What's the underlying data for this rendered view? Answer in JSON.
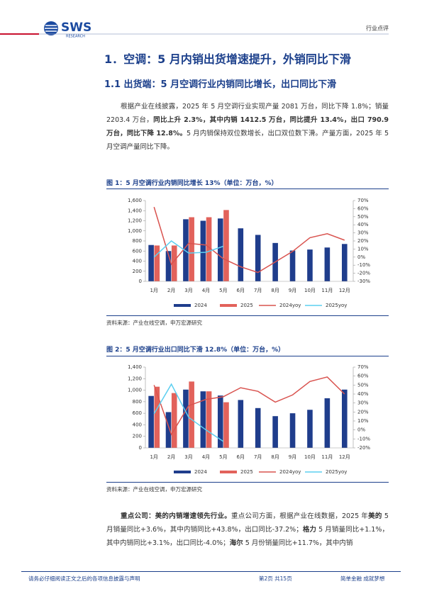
{
  "header": {
    "logo": "SWS",
    "logo_sub": "RESEARCH",
    "label": "行业点评"
  },
  "heading": "1．空调：5 月内销出货增速提升，外销同比下滑",
  "subheading": "1.1 出货端：5 月空调行业内销同比增长，出口同比下滑",
  "paragraphs": [
    [
      {
        "text": "根据产业在线披露，2025 年 5 月空调行业实现产量 2081 万台，同比下降 1.8%；销量 2203.4 万台，",
        "bold": false
      },
      {
        "text": "同比上升 2.3%，其中内销 1412.5 万台，同比提升 13.4%，出口 790.9 万台，同比下降 12.8%。",
        "bold": true
      },
      {
        "text": "5 月内销保持双位数增长，出口双位数下滑。产量方面，2025 年 5 月空调产量同比下降。",
        "bold": false
      }
    ],
    [
      {
        "text": "重点公司：美的内销增速领先行业。",
        "bold": true
      },
      {
        "text": "重点公司方面，根据产业在线数据，2025 年",
        "bold": false
      },
      {
        "text": "美的",
        "bold": true
      },
      {
        "text": " 5 月销量同比+3.6%，其中内销同比+43.8%，出口同比-37.2%；",
        "bold": false
      },
      {
        "text": "格力",
        "bold": true
      },
      {
        "text": " 5 月销量同比+1.1%，其中内销同比+3.1%，出口同比-4.0%；",
        "bold": false
      },
      {
        "text": "海尔",
        "bold": true
      },
      {
        "text": " 5 月份销量同比+11.7%，其中内销",
        "bold": false
      }
    ]
  ],
  "chart_data": [
    {
      "type": "bar",
      "title": "图 1：5 月空调行业内销同比增长 13%（单位：万台，%）",
      "source": "资料来源：产业在线空调，申万宏源研究",
      "categories": [
        "1月",
        "2月",
        "3月",
        "4月",
        "5月",
        "6月",
        "7月",
        "8月",
        "9月",
        "10月",
        "11月",
        "12月"
      ],
      "series": [
        {
          "name": "2024",
          "type": "bar",
          "color": "#1f3d8c",
          "values": [
            720,
            600,
            1230,
            1200,
            1245,
            1050,
            920,
            760,
            610,
            630,
            670,
            740
          ]
        },
        {
          "name": "2025",
          "type": "bar",
          "color": "#e2625b",
          "values": [
            710,
            710,
            1270,
            1270,
            1412.5,
            null,
            null,
            null,
            null,
            null,
            null,
            null
          ]
        },
        {
          "name": "2024yoy",
          "type": "line",
          "axis": "y2",
          "color": "#d9534f",
          "values": [
            62,
            -9,
            17,
            15,
            -2,
            -12,
            -19,
            -6,
            7,
            24,
            29,
            21
          ]
        },
        {
          "name": "2025yoy",
          "type": "line",
          "axis": "y2",
          "color": "#5ccff0",
          "values": [
            0,
            20,
            5,
            6,
            13.4,
            null,
            null,
            null,
            null,
            null,
            null,
            null
          ]
        }
      ],
      "ylim": [
        0,
        1600
      ],
      "yticks": [
        0,
        200,
        400,
        600,
        800,
        {
          "value": 1000,
          "label": "1,000"
        },
        {
          "value": 1200,
          "label": "1,200"
        },
        {
          "value": 1400,
          "label": "1,400"
        },
        {
          "value": 1600,
          "label": "1,600"
        }
      ],
      "y2lim": [
        -30,
        70
      ],
      "y2ticks": [
        {
          "value": -30,
          "label": "-30%"
        },
        {
          "value": -20,
          "label": "-20%"
        },
        {
          "value": -10,
          "label": "-10%"
        },
        {
          "value": 0,
          "label": "0%"
        },
        {
          "value": 10,
          "label": "10%"
        },
        {
          "value": 20,
          "label": "20%"
        },
        {
          "value": 30,
          "label": "30%"
        },
        {
          "value": 40,
          "label": "40%"
        },
        {
          "value": 50,
          "label": "50%"
        },
        {
          "value": 60,
          "label": "60%"
        },
        {
          "value": 70,
          "label": "70%"
        }
      ],
      "legend": "bottom",
      "grid": false
    },
    {
      "type": "bar",
      "title": "图 2：5 月空调行业出口同比下滑 12.8%（单位：万台，%）",
      "source": "资料来源：产业在线空调，申万宏源研究",
      "categories": [
        "1月",
        "2月",
        "3月",
        "4月",
        "5月",
        "6月",
        "7月",
        "8月",
        "9月",
        "10月",
        "11月",
        "12月"
      ],
      "series": [
        {
          "name": "2024",
          "type": "bar",
          "color": "#1f3d8c",
          "values": [
            900,
            620,
            1010,
            980,
            907,
            830,
            690,
            550,
            600,
            660,
            860,
            1010
          ]
        },
        {
          "name": "2025",
          "type": "bar",
          "color": "#e2625b",
          "values": [
            1060,
            950,
            1150,
            980,
            790.9,
            null,
            null,
            null,
            null,
            null,
            null,
            null
          ]
        },
        {
          "name": "2024yoy",
          "type": "line",
          "axis": "y2",
          "color": "#d9534f",
          "values": [
            50,
            -5,
            27,
            34,
            37,
            47,
            43,
            31,
            39,
            54,
            59,
            40
          ]
        },
        {
          "name": "2025yoy",
          "type": "line",
          "axis": "y2",
          "color": "#5ccff0",
          "values": [
            18,
            51,
            14,
            0,
            -12.8,
            null,
            null,
            null,
            null,
            null,
            null,
            null
          ]
        }
      ],
      "ylim": [
        0,
        1400
      ],
      "yticks": [
        0,
        200,
        400,
        600,
        800,
        {
          "value": 1000,
          "label": "1,000"
        },
        {
          "value": 1200,
          "label": "1,200"
        },
        {
          "value": 1400,
          "label": "1,400"
        }
      ],
      "y2lim": [
        -20,
        70
      ],
      "y2ticks": [
        {
          "value": -20,
          "label": "-20%"
        },
        {
          "value": -10,
          "label": "-10%"
        },
        {
          "value": 0,
          "label": "0%"
        },
        {
          "value": 10,
          "label": "10%"
        },
        {
          "value": 20,
          "label": "20%"
        },
        {
          "value": 30,
          "label": "30%"
        },
        {
          "value": 40,
          "label": "40%"
        },
        {
          "value": 50,
          "label": "50%"
        },
        {
          "value": 60,
          "label": "60%"
        },
        {
          "value": 70,
          "label": "70%"
        }
      ],
      "legend": "bottom",
      "grid": false
    }
  ],
  "footer": {
    "disclaimer": "请务必仔细阅读正文之后的各项信息披露与声明",
    "page": "第2页 共15页",
    "slogan": "简单金融 成就梦想"
  }
}
